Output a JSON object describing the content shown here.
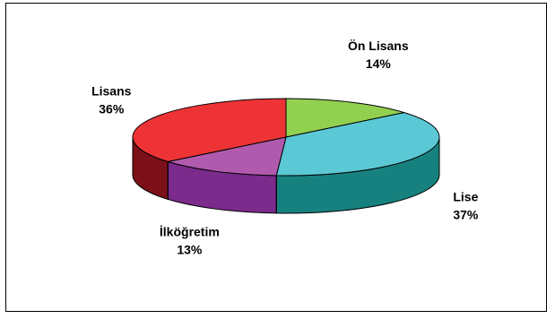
{
  "chart_data": {
    "type": "pie",
    "title": "",
    "slices": [
      {
        "label": "Ön Lisans",
        "value": 14,
        "percent_label": "14%",
        "color": "#92D050",
        "side_color": "#5E8A30"
      },
      {
        "label": "Lise",
        "value": 37,
        "percent_label": "37%",
        "color": "#5BC8D5",
        "side_color": "#17817F"
      },
      {
        "label": "İlköğretim",
        "value": 13,
        "percent_label": "13%",
        "color": "#B05AAE",
        "side_color": "#7B2B8C"
      },
      {
        "label": "Lisans",
        "value": 36,
        "percent_label": "36%",
        "color": "#EE3337",
        "side_color": "#7C1018"
      }
    ],
    "three_d": true,
    "legend": "none"
  }
}
